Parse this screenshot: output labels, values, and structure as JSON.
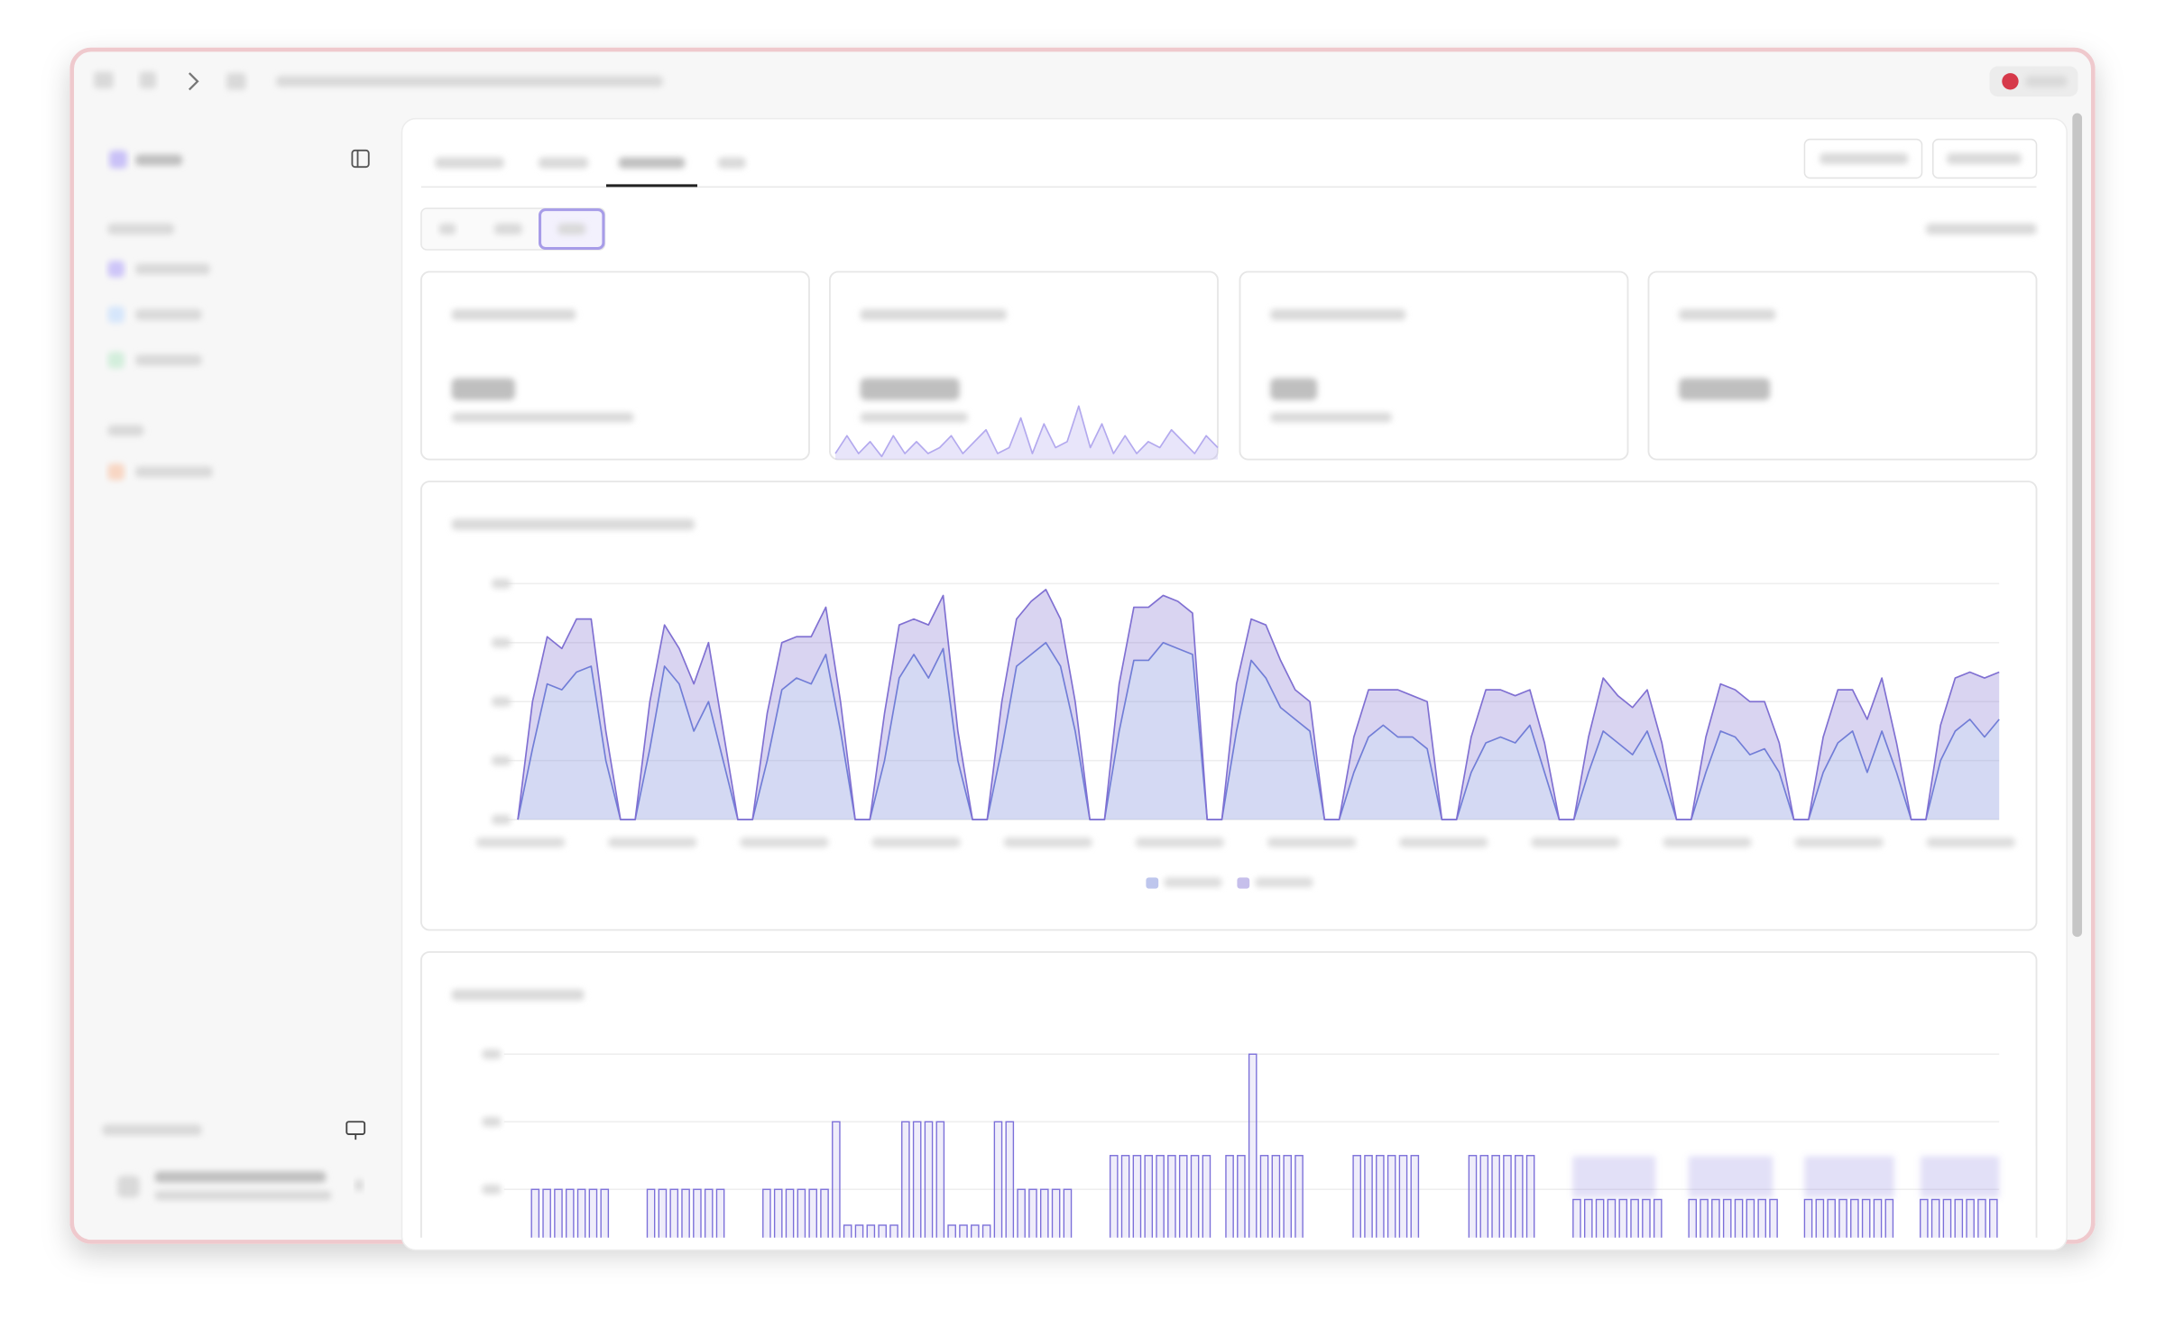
{
  "chart_data": [
    {
      "type": "area",
      "stacked": true,
      "grid": true,
      "ylim": [
        0,
        4
      ],
      "yticks": [
        0,
        1,
        2,
        3,
        4
      ],
      "series": [
        {
          "color": "#6f80d8",
          "values": [
            0,
            1.2,
            2.3,
            2.2,
            2.5,
            2.6,
            1.0,
            0,
            0,
            1.2,
            2.6,
            2.3,
            1.5,
            2.0,
            1.0,
            0,
            0,
            1.0,
            2.2,
            2.4,
            2.3,
            2.8,
            1.5,
            0,
            0,
            1.0,
            2.4,
            2.8,
            2.4,
            2.9,
            1.0,
            0,
            0,
            1.2,
            2.6,
            2.8,
            3.0,
            2.6,
            1.5,
            0,
            0,
            1.5,
            2.7,
            2.7,
            3.0,
            2.9,
            2.8,
            0,
            0,
            1.5,
            2.7,
            2.4,
            1.9,
            1.7,
            1.5,
            0,
            0,
            0.8,
            1.4,
            1.6,
            1.4,
            1.4,
            1.2,
            0,
            0,
            0.8,
            1.3,
            1.4,
            1.3,
            1.6,
            0.8,
            0,
            0,
            0.8,
            1.5,
            1.3,
            1.1,
            1.5,
            0.8,
            0,
            0,
            0.8,
            1.5,
            1.4,
            1.1,
            1.2,
            0.8,
            0,
            0,
            0.8,
            1.3,
            1.5,
            0.8,
            1.5,
            0.8,
            0,
            0,
            1.0,
            1.5,
            1.7,
            1.4,
            1.7
          ]
        },
        {
          "color": "#8070d2",
          "values": [
            0,
            0.8,
            0.8,
            0.7,
            0.9,
            0.8,
            0.5,
            0,
            0,
            0.8,
            0.7,
            0.6,
            0.8,
            1.0,
            0.5,
            0,
            0,
            0.8,
            0.8,
            0.7,
            0.8,
            0.8,
            0.5,
            0,
            0,
            0.8,
            0.9,
            0.6,
            0.9,
            0.9,
            0.5,
            0,
            0,
            0.8,
            0.8,
            0.9,
            0.9,
            0.8,
            0.5,
            0,
            0,
            0.8,
            0.9,
            0.9,
            0.8,
            0.8,
            0.7,
            0,
            0,
            0.8,
            0.7,
            0.9,
            0.8,
            0.5,
            0.5,
            0,
            0,
            0.6,
            0.8,
            0.6,
            0.8,
            0.7,
            0.8,
            0,
            0,
            0.6,
            0.9,
            0.8,
            0.8,
            0.6,
            0.5,
            0,
            0,
            0.6,
            0.9,
            0.8,
            0.8,
            0.7,
            0.5,
            0,
            0,
            0.6,
            0.8,
            0.8,
            0.9,
            0.8,
            0.5,
            0,
            0,
            0.6,
            0.9,
            0.7,
            0.9,
            0.9,
            0.5,
            0,
            0,
            0.6,
            0.9,
            0.8,
            1.0,
            0.8
          ]
        }
      ]
    },
    {
      "type": "bar",
      "grid": true,
      "color": "#7b6fd9",
      "ylim": [
        0,
        3
      ],
      "yticks": [
        1,
        2,
        3
      ],
      "values": [
        0,
        1,
        1,
        1,
        1,
        1,
        1,
        1,
        0,
        0,
        0,
        1,
        1,
        1,
        1,
        1,
        1,
        1,
        0,
        0,
        0,
        1,
        1,
        1,
        1,
        1,
        1,
        2,
        0.47,
        0.47,
        0.47,
        0.47,
        0.47,
        2,
        2,
        2,
        2,
        0.47,
        0.47,
        0.47,
        0.47,
        2,
        2,
        1,
        1,
        1,
        1,
        1,
        0,
        0,
        0,
        1.5,
        1.5,
        1.5,
        1.5,
        1.5,
        1.5,
        1.5,
        1.5,
        1.5,
        0,
        1.5,
        1.5,
        3,
        1.5,
        1.5,
        1.5,
        1.5,
        0,
        0,
        0,
        0,
        1.5,
        1.5,
        1.5,
        1.5,
        1.5,
        1.5,
        0,
        0,
        0,
        0,
        1.5,
        1.5,
        1.5,
        1.5,
        1.5,
        1.5,
        0,
        0,
        0,
        0.85,
        0.85,
        0.85,
        0.85,
        0.85,
        0.85,
        0.85,
        0.85,
        0,
        0,
        0.85,
        0.85,
        0.85,
        0.85,
        0.85,
        0.85,
        0.85,
        0.85,
        0,
        0,
        0.85,
        0.85,
        0.85,
        0.85,
        0.85,
        0.85,
        0.85,
        0.85,
        0,
        0,
        0.85,
        0.85,
        0.85,
        0.85,
        0.85,
        0.85,
        0.85
      ]
    },
    {
      "type": "area",
      "stacked": false,
      "color": "#b3a9ee",
      "ylim": [
        0,
        10
      ],
      "values": [
        1,
        4,
        1,
        3,
        0.5,
        4,
        1,
        3,
        1,
        2,
        4,
        1,
        3,
        5,
        1,
        2,
        7,
        1,
        6,
        2,
        3,
        9,
        2,
        6,
        1,
        4,
        1,
        3,
        2,
        5,
        3,
        1,
        4,
        2
      ]
    }
  ]
}
